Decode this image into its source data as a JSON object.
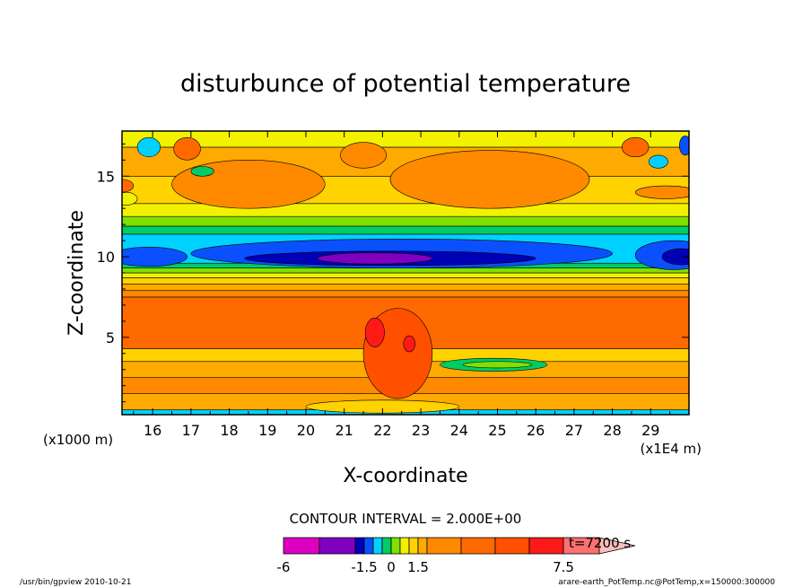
{
  "chart_data": {
    "type": "heatmap",
    "title": "disturbunce of potential temperature",
    "xlabel": "X-coordinate",
    "ylabel": "Z-coordinate",
    "x_units_left": "(x1000 m)",
    "x_units_right": "(x1E4 m)",
    "xlim": [
      15.2,
      30.0
    ],
    "ylim": [
      0.2,
      17.8
    ],
    "xticks": [
      "16",
      "17",
      "18",
      "19",
      "20",
      "21",
      "22",
      "23",
      "24",
      "25",
      "26",
      "27",
      "28",
      "29"
    ],
    "xtick_values": [
      16,
      17,
      18,
      19,
      20,
      21,
      22,
      23,
      24,
      25,
      26,
      27,
      28,
      29
    ],
    "yticks": [
      "5",
      "10",
      "15"
    ],
    "ytick_values": [
      5,
      10,
      15
    ],
    "bands": [
      {
        "z0": 0.2,
        "z1": 0.5,
        "level": "-0.25"
      },
      {
        "z0": 0.5,
        "z1": 1.5,
        "level": "3"
      },
      {
        "z0": 1.5,
        "z1": 2.5,
        "level": "4"
      },
      {
        "z0": 2.5,
        "z1": 3.5,
        "level": "3"
      },
      {
        "z0": 3.5,
        "z1": 4.3,
        "level": "2"
      },
      {
        "z0": 4.3,
        "z1": 7.5,
        "level": "5"
      },
      {
        "z0": 7.5,
        "z1": 7.9,
        "level": "4"
      },
      {
        "z0": 7.9,
        "z1": 8.3,
        "level": "3"
      },
      {
        "z0": 8.3,
        "z1": 8.7,
        "level": "2"
      },
      {
        "z0": 8.7,
        "z1": 9.0,
        "level": "1"
      },
      {
        "z0": 9.0,
        "z1": 9.3,
        "level": "0.5"
      },
      {
        "z0": 9.3,
        "z1": 9.6,
        "level": "0.25"
      },
      {
        "z0": 9.6,
        "z1": 11.4,
        "level": "-0.25"
      },
      {
        "z0": 11.4,
        "z1": 11.9,
        "level": "0.25"
      },
      {
        "z0": 11.9,
        "z1": 12.5,
        "level": "0.5"
      },
      {
        "z0": 12.5,
        "z1": 13.3,
        "level": "1"
      },
      {
        "z0": 13.3,
        "z1": 15.0,
        "level": "2"
      },
      {
        "z0": 15.0,
        "z1": 16.8,
        "level": "3"
      },
      {
        "z0": 16.8,
        "z1": 17.8,
        "level": "1"
      }
    ],
    "features": [
      {
        "shape": "ellipse",
        "cx": 22.5,
        "cz": 10.2,
        "rx": 5.5,
        "rz": 0.9,
        "level": "-0.75"
      },
      {
        "shape": "ellipse",
        "cx": 22.2,
        "cz": 9.9,
        "rx": 3.8,
        "rz": 0.45,
        "level": "-1.25"
      },
      {
        "shape": "ellipse",
        "cx": 21.8,
        "cz": 9.9,
        "rx": 1.5,
        "rz": 0.35,
        "level": "-3"
      },
      {
        "shape": "ellipse",
        "cx": 15.9,
        "cz": 10.0,
        "rx": 1.0,
        "rz": 0.6,
        "level": "-0.75"
      },
      {
        "shape": "ellipse",
        "cx": 29.6,
        "cz": 10.1,
        "rx": 1.0,
        "rz": 0.9,
        "level": "-0.75"
      },
      {
        "shape": "ellipse",
        "cx": 29.8,
        "cz": 10.0,
        "rx": 0.5,
        "rz": 0.5,
        "level": "-1.25"
      },
      {
        "shape": "ellipse",
        "cx": 22.4,
        "cz": 4.0,
        "rx": 0.9,
        "rz": 2.8,
        "level": "6"
      },
      {
        "shape": "ellipse",
        "cx": 21.8,
        "cz": 5.3,
        "rx": 0.25,
        "rz": 0.9,
        "level": "7"
      },
      {
        "shape": "ellipse",
        "cx": 22.7,
        "cz": 4.6,
        "rx": 0.15,
        "rz": 0.5,
        "level": "7"
      },
      {
        "shape": "ellipse",
        "cx": 24.9,
        "cz": 3.3,
        "rx": 1.4,
        "rz": 0.4,
        "level": "0.25"
      },
      {
        "shape": "ellipse",
        "cx": 25.0,
        "cz": 3.3,
        "rx": 0.9,
        "rz": 0.2,
        "level": "0.5"
      },
      {
        "shape": "ellipse",
        "cx": 22.0,
        "cz": 0.7,
        "rx": 2.0,
        "rz": 0.4,
        "level": "2"
      },
      {
        "shape": "ellipse",
        "cx": 18.5,
        "cz": 14.5,
        "rx": 2.0,
        "rz": 1.5,
        "level": "4"
      },
      {
        "shape": "ellipse",
        "cx": 24.8,
        "cz": 14.8,
        "rx": 2.6,
        "rz": 1.8,
        "level": "4"
      },
      {
        "shape": "ellipse",
        "cx": 21.5,
        "cz": 16.3,
        "rx": 0.6,
        "rz": 0.8,
        "level": "4"
      },
      {
        "shape": "ellipse",
        "cx": 16.9,
        "cz": 16.7,
        "rx": 0.35,
        "rz": 0.7,
        "level": "5"
      },
      {
        "shape": "ellipse",
        "cx": 28.6,
        "cz": 16.8,
        "rx": 0.35,
        "rz": 0.6,
        "level": "5"
      },
      {
        "shape": "ellipse",
        "cx": 15.2,
        "cz": 14.4,
        "rx": 0.3,
        "rz": 0.4,
        "level": "5"
      },
      {
        "shape": "ellipse",
        "cx": 15.9,
        "cz": 16.8,
        "rx": 0.3,
        "rz": 0.6,
        "level": "-0.25"
      },
      {
        "shape": "ellipse",
        "cx": 29.2,
        "cz": 15.9,
        "rx": 0.25,
        "rz": 0.4,
        "level": "-0.25"
      },
      {
        "shape": "ellipse",
        "cx": 29.9,
        "cz": 16.9,
        "rx": 0.15,
        "rz": 0.6,
        "level": "-0.75"
      },
      {
        "shape": "ellipse",
        "cx": 17.3,
        "cz": 15.3,
        "rx": 0.3,
        "rz": 0.3,
        "level": "0.25"
      },
      {
        "shape": "ellipse",
        "cx": 29.4,
        "cz": 14.0,
        "rx": 0.8,
        "rz": 0.4,
        "level": "4"
      },
      {
        "shape": "ellipse",
        "cx": 15.3,
        "cz": 13.6,
        "rx": 0.3,
        "rz": 0.4,
        "level": "1"
      }
    ],
    "legend": {
      "title": "CONTOUR INTERVAL = 2.000E+00",
      "time_label": "t=7200 s",
      "tick_labels": [
        "-6",
        "-1.5",
        "0",
        "1.5",
        "7.5"
      ],
      "segments": [
        {
          "level": "-5",
          "color": "#dd00c0"
        },
        {
          "level": "-3",
          "color": "#8000c0"
        },
        {
          "level": "-1.25",
          "color": "#0000b4"
        },
        {
          "level": "-0.75",
          "color": "#0a50ff"
        },
        {
          "level": "-0.25",
          "color": "#00d2ff"
        },
        {
          "level": "0.25",
          "color": "#00cc66"
        },
        {
          "level": "0.5",
          "color": "#80e000"
        },
        {
          "level": "1",
          "color": "#f2f200"
        },
        {
          "level": "2",
          "color": "#ffd200"
        },
        {
          "level": "3",
          "color": "#ffaa00"
        },
        {
          "level": "4",
          "color": "#ff8a00"
        },
        {
          "level": "5",
          "color": "#ff6a00"
        },
        {
          "level": "6",
          "color": "#ff5000"
        },
        {
          "level": "7",
          "color": "#ff1a1a"
        },
        {
          "level": "8",
          "color": "#ff7070"
        },
        {
          "level": "9",
          "color": "#ffbcbc"
        }
      ]
    }
  },
  "footer": {
    "left": "/usr/bin/gpview  2010-10-21",
    "right": "arare-earth_PotTemp.nc@PotTemp,x=150000:300000"
  }
}
